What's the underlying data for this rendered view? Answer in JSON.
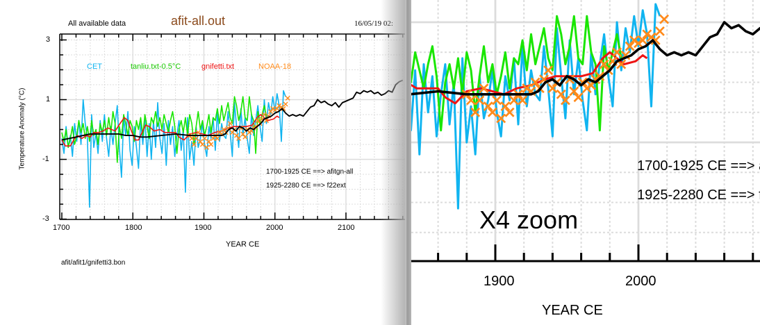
{
  "header": {
    "subtitle": "All available data",
    "title": "afit-all.out",
    "timestamp": "16/05/19  02:",
    "footer": "afit/afit1/gnifetti3.bon",
    "zoom_label": "X4 zoom"
  },
  "colors": {
    "cet": "#10b4f0",
    "tanliu": "#19e600",
    "gnifetti": "#ee1414",
    "noaa": "#ff8a1a",
    "fit": "#000000",
    "title": "#8b4a1c"
  },
  "chart_data": {
    "type": "line",
    "title": "afit-all.out",
    "xlabel": "YEAR CE",
    "ylabel": "Temperature Anomaly (°C)",
    "xlim": [
      1697,
      2180
    ],
    "ylim": [
      -3,
      3
    ],
    "grid": true,
    "legend_placement": "top",
    "yticks": [
      "3",
      "1",
      "-1",
      "-3"
    ],
    "xticks": [
      "1700",
      "1800",
      "1900",
      "2000",
      "2100"
    ],
    "zoom_xticks": [
      "1900",
      "2000"
    ],
    "annotations": [
      "1700-1925 CE ==> afitgn-all",
      "1925-2280 CE ==> f22ext"
    ],
    "legend": [
      "CET",
      "tanliu.txt-0.5°C",
      "gnifetti.txt",
      "NOAA-18"
    ],
    "series": [
      {
        "name": "CET",
        "start": 1700,
        "step": 3,
        "values": [
          -0.3,
          -0.8,
          0.1,
          -0.6,
          -0.2,
          -0.9,
          0.2,
          -0.4,
          0.3,
          -0.5,
          1.0,
          0.2,
          -0.3,
          -2.6,
          0.5,
          -0.6,
          -0.1,
          -0.8,
          0.3,
          -0.4,
          0.5,
          -0.3,
          -0.9,
          0.1,
          -0.5,
          0.2,
          0.8,
          -0.6,
          -1.6,
          0.4,
          -0.2,
          0.6,
          -0.7,
          -1.2,
          0.1,
          -0.6,
          -1.3,
          0.3,
          -0.5,
          0.4,
          -0.9,
          0.2,
          -1.0,
          0.3,
          -0.6,
          0.9,
          -0.3,
          -0.8,
          0.2,
          -1.2,
          0.3,
          -0.5,
          0.1,
          -0.9,
          -0.2,
          0.3,
          -0.7,
          0.0,
          -2.1,
          0.4,
          -1.0,
          -0.4,
          -1.2,
          0.1,
          -0.6,
          -0.3,
          0.2,
          -0.5,
          -0.9,
          0.1,
          -0.3,
          0.4,
          -0.7,
          0.6,
          -0.4,
          0.2,
          -0.2,
          -0.3,
          0.6,
          -0.1,
          -0.9,
          0.9,
          0.1,
          -0.6,
          0.7,
          -0.2,
          0.4,
          -0.3,
          -0.8,
          0.5,
          -0.2,
          0.3,
          0.8,
          0.1,
          -0.4,
          1.0,
          0.2,
          0.9,
          0.5,
          1.1,
          0.6,
          1.2,
          0.8,
          -0.4,
          1.3,
          1.1
        ]
      },
      {
        "name": "tanliu.txt-0.5°C",
        "start": 1700,
        "step": 3,
        "values": [
          -0.1,
          -0.4,
          0.0,
          -0.6,
          -0.3,
          0.1,
          -0.5,
          -0.2,
          0.3,
          -0.1,
          0.2,
          -0.3,
          0.1,
          -0.4,
          0.3,
          -0.2,
          0.0,
          -0.5,
          0.2,
          -0.1,
          0.3,
          -0.2,
          0.4,
          -0.1,
          0.6,
          0.2,
          -1.1,
          0.1,
          -0.3,
          0.5,
          0.2,
          -0.2,
          0.3,
          0.1,
          -0.4,
          0.3,
          0.0,
          0.4,
          -0.2,
          0.5,
          0.1,
          -0.3,
          0.4,
          0.2,
          0.6,
          0.1,
          0.4,
          0.0,
          0.5,
          0.2,
          -0.1,
          0.3,
          0.6,
          0.1,
          -0.8,
          0.0,
          0.3,
          -0.1,
          0.4,
          -0.2,
          0.5,
          0.2,
          -0.5,
          0.1,
          0.6,
          0.0,
          0.3,
          -0.2,
          0.1,
          0.5,
          -0.1,
          0.4,
          0.3,
          0.7,
          0.2,
          0.8,
          0.3,
          0.6,
          0.9,
          0.4,
          0.2,
          1.1,
          0.8,
          0.3,
          0.6,
          1.1,
          0.4,
          0.3,
          1.1,
          0.5,
          0.3,
          -0.8,
          0.6,
          0.2,
          0.5,
          0.8,
          0.4
        ]
      },
      {
        "name": "gnifetti.txt",
        "x": [
          1700,
          1705,
          1712,
          1718,
          1722,
          1728,
          1735,
          1740,
          1745,
          1752,
          1758,
          1765,
          1775,
          1782,
          1788,
          1793,
          1798,
          1803,
          1808,
          1813,
          1818,
          1823,
          1830,
          1838,
          1845,
          1852,
          1860,
          1865,
          1872,
          1880,
          1890,
          1898,
          1906,
          1915,
          1925,
          1935,
          1942,
          1950,
          1960,
          1968,
          1975,
          1980,
          1985,
          1990,
          1998,
          2003,
          2006
        ],
        "values": [
          -0.35,
          -0.55,
          -0.55,
          -0.3,
          -0.2,
          -0.3,
          -0.2,
          -0.25,
          -0.1,
          -0.1,
          -0.05,
          0.05,
          -0.05,
          0.2,
          0.4,
          0.3,
          -0.05,
          -0.35,
          -0.35,
          -0.1,
          0.15,
          0.1,
          -0.05,
          0.0,
          -0.1,
          -0.1,
          -0.1,
          -0.25,
          -0.35,
          -0.15,
          -0.1,
          -0.15,
          -0.2,
          -0.1,
          -0.05,
          0.05,
          0.1,
          0.1,
          0.1,
          0.15,
          0.4,
          0.5,
          0.4,
          0.3,
          0.35,
          0.45,
          0.4
        ]
      },
      {
        "name": "NOAA-18",
        "marker": "x",
        "start": 1880,
        "step": 3,
        "values": [
          -0.2,
          -0.3,
          -0.5,
          -0.3,
          -0.1,
          -0.4,
          -0.5,
          -0.3,
          -0.6,
          -0.4,
          -0.5,
          -0.3,
          -0.2,
          -0.3,
          -0.1,
          -0.15,
          0.0,
          -0.1,
          0.05,
          0.2,
          -0.1,
          0.0,
          -0.2,
          -0.3,
          0.05,
          -0.15,
          -0.25,
          0.0,
          -0.1,
          -0.05,
          0.05,
          0.1,
          0.3,
          0.2,
          0.35,
          0.5,
          0.3,
          0.45,
          0.6,
          0.7,
          0.65,
          0.7,
          0.8,
          0.75,
          0.7,
          0.85,
          1.05
        ]
      },
      {
        "name": "fit",
        "x": [
          1700,
          1710,
          1720,
          1730,
          1740,
          1780,
          1790,
          1800,
          1810,
          1820,
          1840,
          1860,
          1880,
          1900,
          1925,
          1930,
          1935,
          1940,
          1945,
          1950,
          1955,
          1960,
          1965,
          1970,
          1975,
          1980,
          1985,
          1990,
          1995,
          2000,
          2005,
          2010,
          2015,
          2020,
          2025,
          2030,
          2035,
          2040,
          2045,
          2050,
          2055,
          2060,
          2065,
          2070,
          2075,
          2080,
          2085,
          2090,
          2095,
          2100,
          2110,
          2115,
          2120,
          2125,
          2130,
          2135,
          2140,
          2145,
          2150,
          2155,
          2160,
          2165,
          2170,
          2175,
          2180
        ],
        "values": [
          -0.35,
          -0.3,
          -0.25,
          -0.2,
          -0.15,
          -0.15,
          -0.2,
          -0.2,
          -0.25,
          -0.25,
          -0.2,
          -0.15,
          -0.2,
          -0.2,
          -0.2,
          -0.15,
          0.0,
          0.05,
          -0.05,
          0.1,
          0.05,
          -0.05,
          0.05,
          0.0,
          0.1,
          0.2,
          0.35,
          0.4,
          0.45,
          0.55,
          0.6,
          0.7,
          0.55,
          0.45,
          0.5,
          0.45,
          0.5,
          0.45,
          0.6,
          0.75,
          0.8,
          1.0,
          0.9,
          0.95,
          0.85,
          0.8,
          0.9,
          0.75,
          0.9,
          0.95,
          1.05,
          1.25,
          1.2,
          1.3,
          1.25,
          1.3,
          1.2,
          1.25,
          1.15,
          1.2,
          1.3,
          1.25,
          1.5,
          1.6,
          1.65
        ]
      }
    ]
  }
}
